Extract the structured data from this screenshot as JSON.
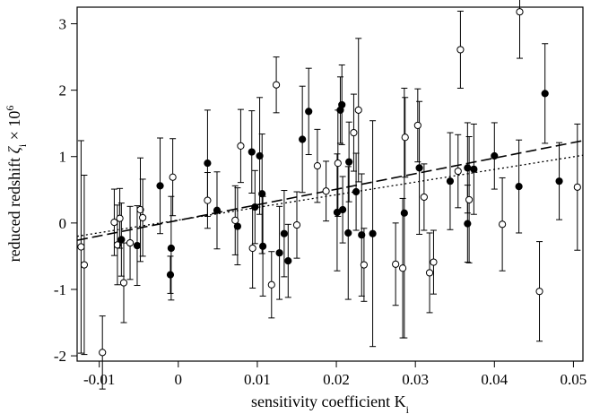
{
  "chart_data": {
    "type": "scatter",
    "title": "",
    "xlabel": "sensitivity coefficient K",
    "xlabel_sub": "i",
    "ylabel_prefix": "reduced redshift ",
    "ylabel_symbol": "ζ",
    "ylabel_sub": "i",
    "ylabel_mid": " × 10",
    "ylabel_sup": "6",
    "xlim": [
      -0.0128,
      0.0512
    ],
    "ylim": [
      -2.08,
      3.25
    ],
    "x_ticks": [
      -0.01,
      0,
      0.01,
      0.02,
      0.03,
      0.04,
      0.05
    ],
    "x_tick_labels": [
      "-0.01",
      "0",
      "0.01",
      "0.02",
      "0.03",
      "0.04",
      "0.05"
    ],
    "y_ticks": [
      -2,
      -1,
      0,
      1,
      2,
      3
    ],
    "y_tick_labels": [
      "-2",
      "-1",
      "0",
      "1",
      "2",
      "3"
    ],
    "grid": false,
    "legend": false,
    "marker_colors": {
      "filled": "#000000",
      "open": "#ffffff",
      "edge": "#000000"
    },
    "series": [
      {
        "marker": "filled",
        "points": [
          [
            -0.0023,
            0.56,
            0.72
          ],
          [
            -0.0009,
            -0.38,
            0.78
          ],
          [
            -0.001,
            -0.78,
            0.28
          ],
          [
            -0.0052,
            -0.34,
            0.6
          ],
          [
            -0.0072,
            -0.25,
            0.55
          ],
          [
            0.0037,
            0.9,
            0.8
          ],
          [
            0.0049,
            0.19,
            0.58
          ],
          [
            0.0075,
            -0.05,
            0.58
          ],
          [
            0.0093,
            1.07,
            0.62
          ],
          [
            0.0097,
            0.24,
            0.55
          ],
          [
            0.0103,
            1.01,
            0.88
          ],
          [
            0.0106,
            0.44,
            0.9
          ],
          [
            0.0107,
            -0.35,
            0.75
          ],
          [
            0.0128,
            -0.45,
            0.7
          ],
          [
            0.0134,
            -0.16,
            0.65
          ],
          [
            0.0139,
            -0.57,
            0.55
          ],
          [
            0.0157,
            1.26,
            0.8
          ],
          [
            0.0165,
            1.68,
            0.65
          ],
          [
            0.0201,
            0.16,
            0.88
          ],
          [
            0.0205,
            1.7,
            0.5
          ],
          [
            0.0207,
            1.78,
            0.6
          ],
          [
            0.0208,
            0.2,
            0.5
          ],
          [
            0.0215,
            -0.15,
            1.0
          ],
          [
            0.0216,
            0.92,
            0.6
          ],
          [
            0.0225,
            0.47,
            0.58
          ],
          [
            0.0232,
            -0.18,
            0.92
          ],
          [
            0.0246,
            -0.16,
            1.7
          ],
          [
            0.0286,
            0.15,
            1.88
          ],
          [
            0.0305,
            0.83,
            1.0
          ],
          [
            0.0344,
            0.63,
            0.73
          ],
          [
            0.0366,
            -0.01,
            0.58
          ],
          [
            0.0366,
            0.83,
            0.68
          ],
          [
            0.0374,
            0.81,
            0.68
          ],
          [
            0.04,
            1.01,
            0.5
          ],
          [
            0.0431,
            0.55,
            0.7
          ],
          [
            0.0464,
            1.95,
            0.75
          ],
          [
            0.0482,
            0.63,
            0.58
          ]
        ]
      },
      {
        "marker": "open",
        "points": [
          [
            -0.0119,
            -0.63,
            1.35
          ],
          [
            -0.0123,
            -0.36,
            1.6
          ],
          [
            -0.0096,
            -1.95,
            0.55
          ],
          [
            -0.0081,
            0.01,
            0.5
          ],
          [
            -0.0077,
            -0.33,
            0.6
          ],
          [
            -0.0074,
            0.07,
            0.45
          ],
          [
            -0.0069,
            -0.9,
            0.6
          ],
          [
            -0.0061,
            -0.3,
            0.55
          ],
          [
            -0.0048,
            0.2,
            0.78
          ],
          [
            -0.0045,
            0.08,
            0.58
          ],
          [
            -0.0007,
            0.69,
            0.58
          ],
          [
            0.0037,
            0.34,
            0.42
          ],
          [
            0.0072,
            0.04,
            0.52
          ],
          [
            0.0079,
            1.16,
            0.55
          ],
          [
            0.0094,
            -0.38,
            0.6
          ],
          [
            0.0118,
            -0.93,
            0.5
          ],
          [
            0.0124,
            2.08,
            0.42
          ],
          [
            0.015,
            -0.03,
            0.5
          ],
          [
            0.0176,
            0.86,
            0.55
          ],
          [
            0.0187,
            0.48,
            0.45
          ],
          [
            0.0202,
            0.9,
            0.8
          ],
          [
            0.0222,
            1.36,
            0.58
          ],
          [
            0.0228,
            1.7,
            1.08
          ],
          [
            0.0235,
            -0.63,
            0.55
          ],
          [
            0.0275,
            -0.62,
            0.62
          ],
          [
            0.0284,
            -0.68,
            1.05
          ],
          [
            0.0287,
            1.29,
            0.6
          ],
          [
            0.0303,
            1.47,
            0.55
          ],
          [
            0.0311,
            0.39,
            0.5
          ],
          [
            0.0318,
            -0.75,
            0.6
          ],
          [
            0.0323,
            -0.59,
            0.48
          ],
          [
            0.0354,
            0.78,
            0.55
          ],
          [
            0.0357,
            2.61,
            0.58
          ],
          [
            0.0368,
            0.35,
            0.95
          ],
          [
            0.041,
            -0.02,
            0.7
          ],
          [
            0.0432,
            3.18,
            0.7
          ],
          [
            0.0457,
            -1.03,
            0.75
          ],
          [
            0.0505,
            0.54,
            0.95
          ]
        ]
      }
    ],
    "fit_lines": [
      {
        "style": "dashed",
        "x": [
          -0.0128,
          0.0512
        ],
        "y": [
          -0.26,
          1.24
        ]
      },
      {
        "style": "dotted",
        "x": [
          -0.0128,
          0.0512
        ],
        "y": [
          -0.2,
          1.02
        ]
      }
    ]
  }
}
